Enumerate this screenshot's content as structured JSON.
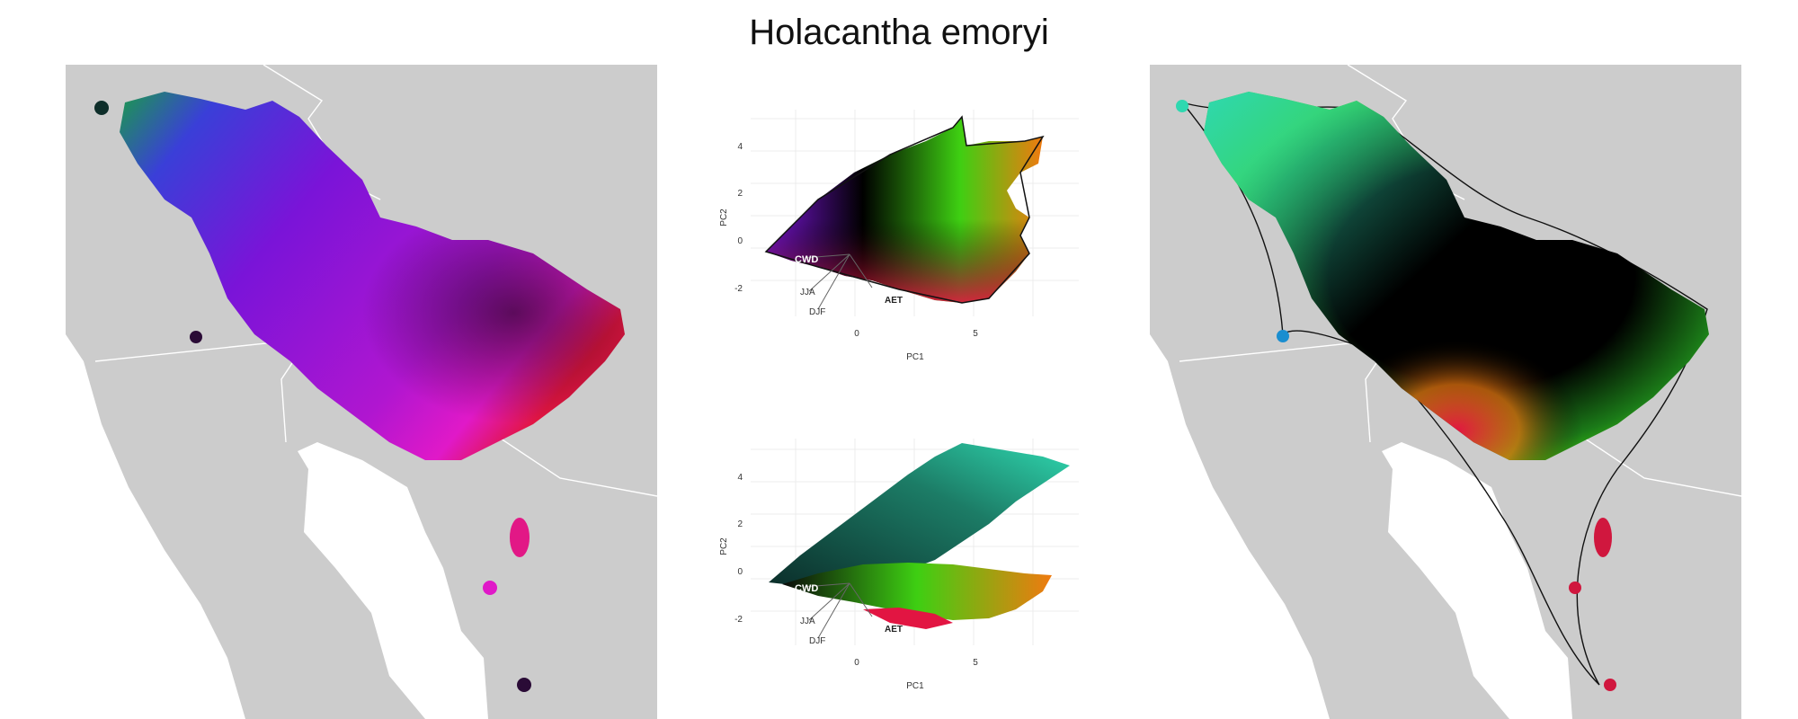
{
  "title": "Holacantha emoryi",
  "pca_top": {
    "xlabel": "PC1",
    "ylabel": "PC2",
    "xticks": [
      "0",
      "5"
    ],
    "yticks": [
      "4",
      "2",
      "0",
      "-2"
    ],
    "labels": {
      "cwd": "CWD",
      "jja": "JJA",
      "djf": "DJF",
      "aet": "AET"
    }
  },
  "pca_bottom": {
    "xlabel": "PC1",
    "ylabel": "PC2",
    "xticks": [
      "0",
      "5"
    ],
    "yticks": [
      "4",
      "2",
      "0",
      "-2"
    ],
    "labels": {
      "cwd": "CWD",
      "jja": "JJA",
      "djf": "DJF",
      "aet": "AET"
    }
  },
  "colors": {
    "land": "#cccccc",
    "sea": "#ffffff",
    "purple": "#7a14d8",
    "magenta": "#e019c8",
    "teal": "#2fd8b0",
    "green": "#3ecf12",
    "red": "#e21542",
    "orange": "#f07a10"
  }
}
